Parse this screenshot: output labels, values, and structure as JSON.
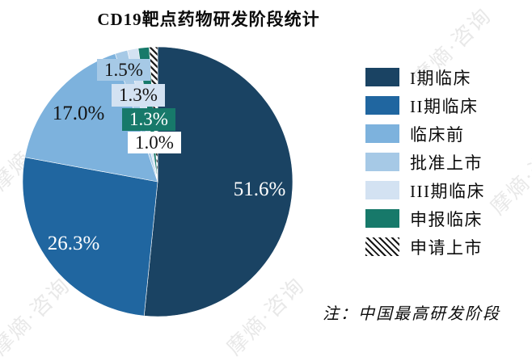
{
  "watermark": "摩熵·咨询",
  "chart_data": {
    "type": "pie",
    "title": "CD19靶点药物研发阶段统计",
    "categories": [
      "I期临床",
      "II期临床",
      "临床前",
      "批准上市",
      "III期临床",
      "申报临床",
      "申请上市"
    ],
    "values": [
      51.6,
      26.3,
      17.0,
      1.5,
      1.3,
      1.3,
      1.0
    ],
    "labels": [
      "51.6%",
      "26.3%",
      "17.0%",
      "1.5%",
      "1.3%",
      "1.3%",
      "1.0%"
    ],
    "colors": [
      "#1a4363",
      "#2066a0",
      "#7db2dd",
      "#a6c9e6",
      "#d3e2f2",
      "#17796a",
      "hatch"
    ],
    "start_angle_deg": -90,
    "direction": "clockwise",
    "legend_position": "right",
    "note": "注：中国最高研发阶段"
  }
}
